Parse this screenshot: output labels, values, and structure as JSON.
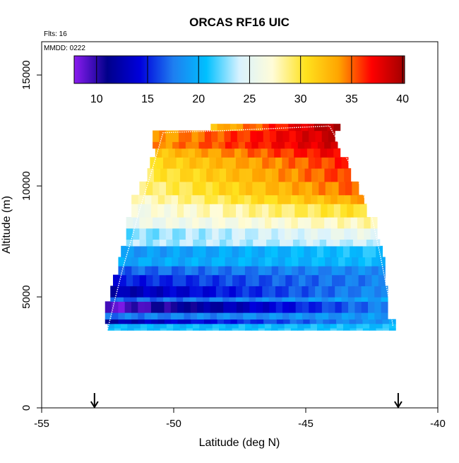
{
  "chart_data": {
    "type": "heatmap",
    "title": "ORCAS RF16 UIC",
    "xlabel": "Latitude (deg N)",
    "ylabel": "Altitude (m)",
    "xlim": [
      -55,
      -40
    ],
    "ylim": [
      0,
      16500
    ],
    "xticks": [
      -55,
      -50,
      -45,
      -40
    ],
    "yticks": [
      0,
      5000,
      10000,
      15000
    ],
    "annotations": {
      "flights": "Flts: 16",
      "date": "MMDD: 0222"
    },
    "colorbar": {
      "range": [
        7.8,
        40.2
      ],
      "ticks": [
        10,
        15,
        20,
        25,
        30,
        35,
        40
      ],
      "colors": [
        "#8b1cf0",
        "#00008a",
        "#0000dc",
        "#1e7ef0",
        "#00c0ff",
        "#d8f2ff",
        "#fffcd8",
        "#ffe21e",
        "#ffa500",
        "#ff0000",
        "#a00000"
      ]
    },
    "arrows_at_lat": [
      -53,
      -41.5
    ],
    "layers": [
      {
        "alt_bottom": 3500,
        "alt_top": 3600,
        "lat_min": -52.5,
        "lat_max": -41.6,
        "v_left": 20.6,
        "v_right": 21.2
      },
      {
        "alt_bottom": 3600,
        "alt_top": 3800,
        "lat_min": -52.5,
        "lat_max": -41.6,
        "v_left": 20.3,
        "v_right": 20.7
      },
      {
        "alt_bottom": 3800,
        "alt_top": 4000,
        "lat_min": -52.6,
        "lat_max": -41.6,
        "v_left": 12.0,
        "v_right": 18.9
      },
      {
        "alt_bottom": 4000,
        "alt_top": 4300,
        "lat_min": -52.6,
        "lat_max": -41.9,
        "v_left": 17.4,
        "v_right": 18.9
      },
      {
        "alt_bottom": 4300,
        "alt_top": 4800,
        "lat_min": -52.6,
        "lat_max": -41.9,
        "v_left": 8.6,
        "v_right": 17.8
      },
      {
        "alt_bottom": 4800,
        "alt_top": 5000,
        "lat_min": -52.4,
        "lat_max": -41.9,
        "v_left": 16.6,
        "v_right": 19.4
      },
      {
        "alt_bottom": 5000,
        "alt_top": 5500,
        "lat_min": -52.4,
        "lat_max": -41.9,
        "v_left": 12.3,
        "v_right": 18.4
      },
      {
        "alt_bottom": 5500,
        "alt_top": 6000,
        "lat_min": -52.3,
        "lat_max": -42.0,
        "v_left": 14.8,
        "v_right": 17.8
      },
      {
        "alt_bottom": 6000,
        "alt_top": 6400,
        "lat_min": -52.1,
        "lat_max": -42.0,
        "v_left": 16.8,
        "v_right": 18.3
      },
      {
        "alt_bottom": 6400,
        "alt_top": 6800,
        "lat_min": -52.1,
        "lat_max": -42.0,
        "v_left": 19.5,
        "v_right": 20.5
      },
      {
        "alt_bottom": 6800,
        "alt_top": 7300,
        "lat_min": -52.0,
        "lat_max": -42.1,
        "v_left": 18.7,
        "v_right": 21.0
      },
      {
        "alt_bottom": 7300,
        "alt_top": 7600,
        "lat_min": -51.8,
        "lat_max": -42.2,
        "v_left": 23.2,
        "v_right": 24.0
      },
      {
        "alt_bottom": 7600,
        "alt_top": 8100,
        "lat_min": -51.8,
        "lat_max": -42.3,
        "v_left": 22.5,
        "v_right": 25.5
      },
      {
        "alt_bottom": 8100,
        "alt_top": 8600,
        "lat_min": -51.8,
        "lat_max": -42.3,
        "v_left": 25.5,
        "v_right": 28.0
      },
      {
        "alt_bottom": 8600,
        "alt_top": 9200,
        "lat_min": -51.6,
        "lat_max": -42.7,
        "v_left": 26.3,
        "v_right": 30.5
      },
      {
        "alt_bottom": 9200,
        "alt_top": 9600,
        "lat_min": -51.6,
        "lat_max": -42.8,
        "v_left": 27.3,
        "v_right": 33.5
      },
      {
        "alt_bottom": 9600,
        "alt_top": 10200,
        "lat_min": -51.3,
        "lat_max": -43.0,
        "v_left": 28.5,
        "v_right": 35.2
      },
      {
        "alt_bottom": 10200,
        "alt_top": 10800,
        "lat_min": -51.0,
        "lat_max": -43.3,
        "v_left": 29.7,
        "v_right": 36.0
      },
      {
        "alt_bottom": 10800,
        "alt_top": 11300,
        "lat_min": -50.9,
        "lat_max": -43.4,
        "v_left": 30.9,
        "v_right": 36.3
      },
      {
        "alt_bottom": 11300,
        "alt_top": 11700,
        "lat_min": -50.7,
        "lat_max": -43.7,
        "v_left": 32.1,
        "v_right": 37.5
      },
      {
        "alt_bottom": 11700,
        "alt_top": 12000,
        "lat_min": -50.8,
        "lat_max": -43.8,
        "v_left": 34.0,
        "v_right": 38.5
      },
      {
        "alt_bottom": 12000,
        "alt_top": 12500,
        "lat_min": -50.8,
        "lat_max": -43.9,
        "v_left": 33.5,
        "v_right": 38.8
      },
      {
        "alt_bottom": 12500,
        "alt_top": 12800,
        "lat_min": -48.6,
        "lat_max": -43.7,
        "v_left": 32.5,
        "v_right": 40.2
      }
    ],
    "flight_track": [
      {
        "lat": -52.5,
        "alt": 3550
      },
      {
        "lat": -52.2,
        "alt": 5000
      },
      {
        "lat": -51.9,
        "alt": 6400
      },
      {
        "lat": -51.6,
        "alt": 7600
      },
      {
        "lat": -51.3,
        "alt": 8900
      },
      {
        "lat": -50.9,
        "alt": 10400
      },
      {
        "lat": -50.6,
        "alt": 11600
      },
      {
        "lat": -50.4,
        "alt": 12400
      },
      {
        "lat": -48.0,
        "alt": 12500
      },
      {
        "lat": -46.0,
        "alt": 12600
      },
      {
        "lat": -44.1,
        "alt": 12700
      },
      {
        "lat": -43.6,
        "alt": 11600
      },
      {
        "lat": -43.0,
        "alt": 10200
      },
      {
        "lat": -42.5,
        "alt": 8600
      },
      {
        "lat": -42.2,
        "alt": 7000
      },
      {
        "lat": -41.9,
        "alt": 5200
      },
      {
        "lat": -41.7,
        "alt": 3700
      }
    ]
  }
}
